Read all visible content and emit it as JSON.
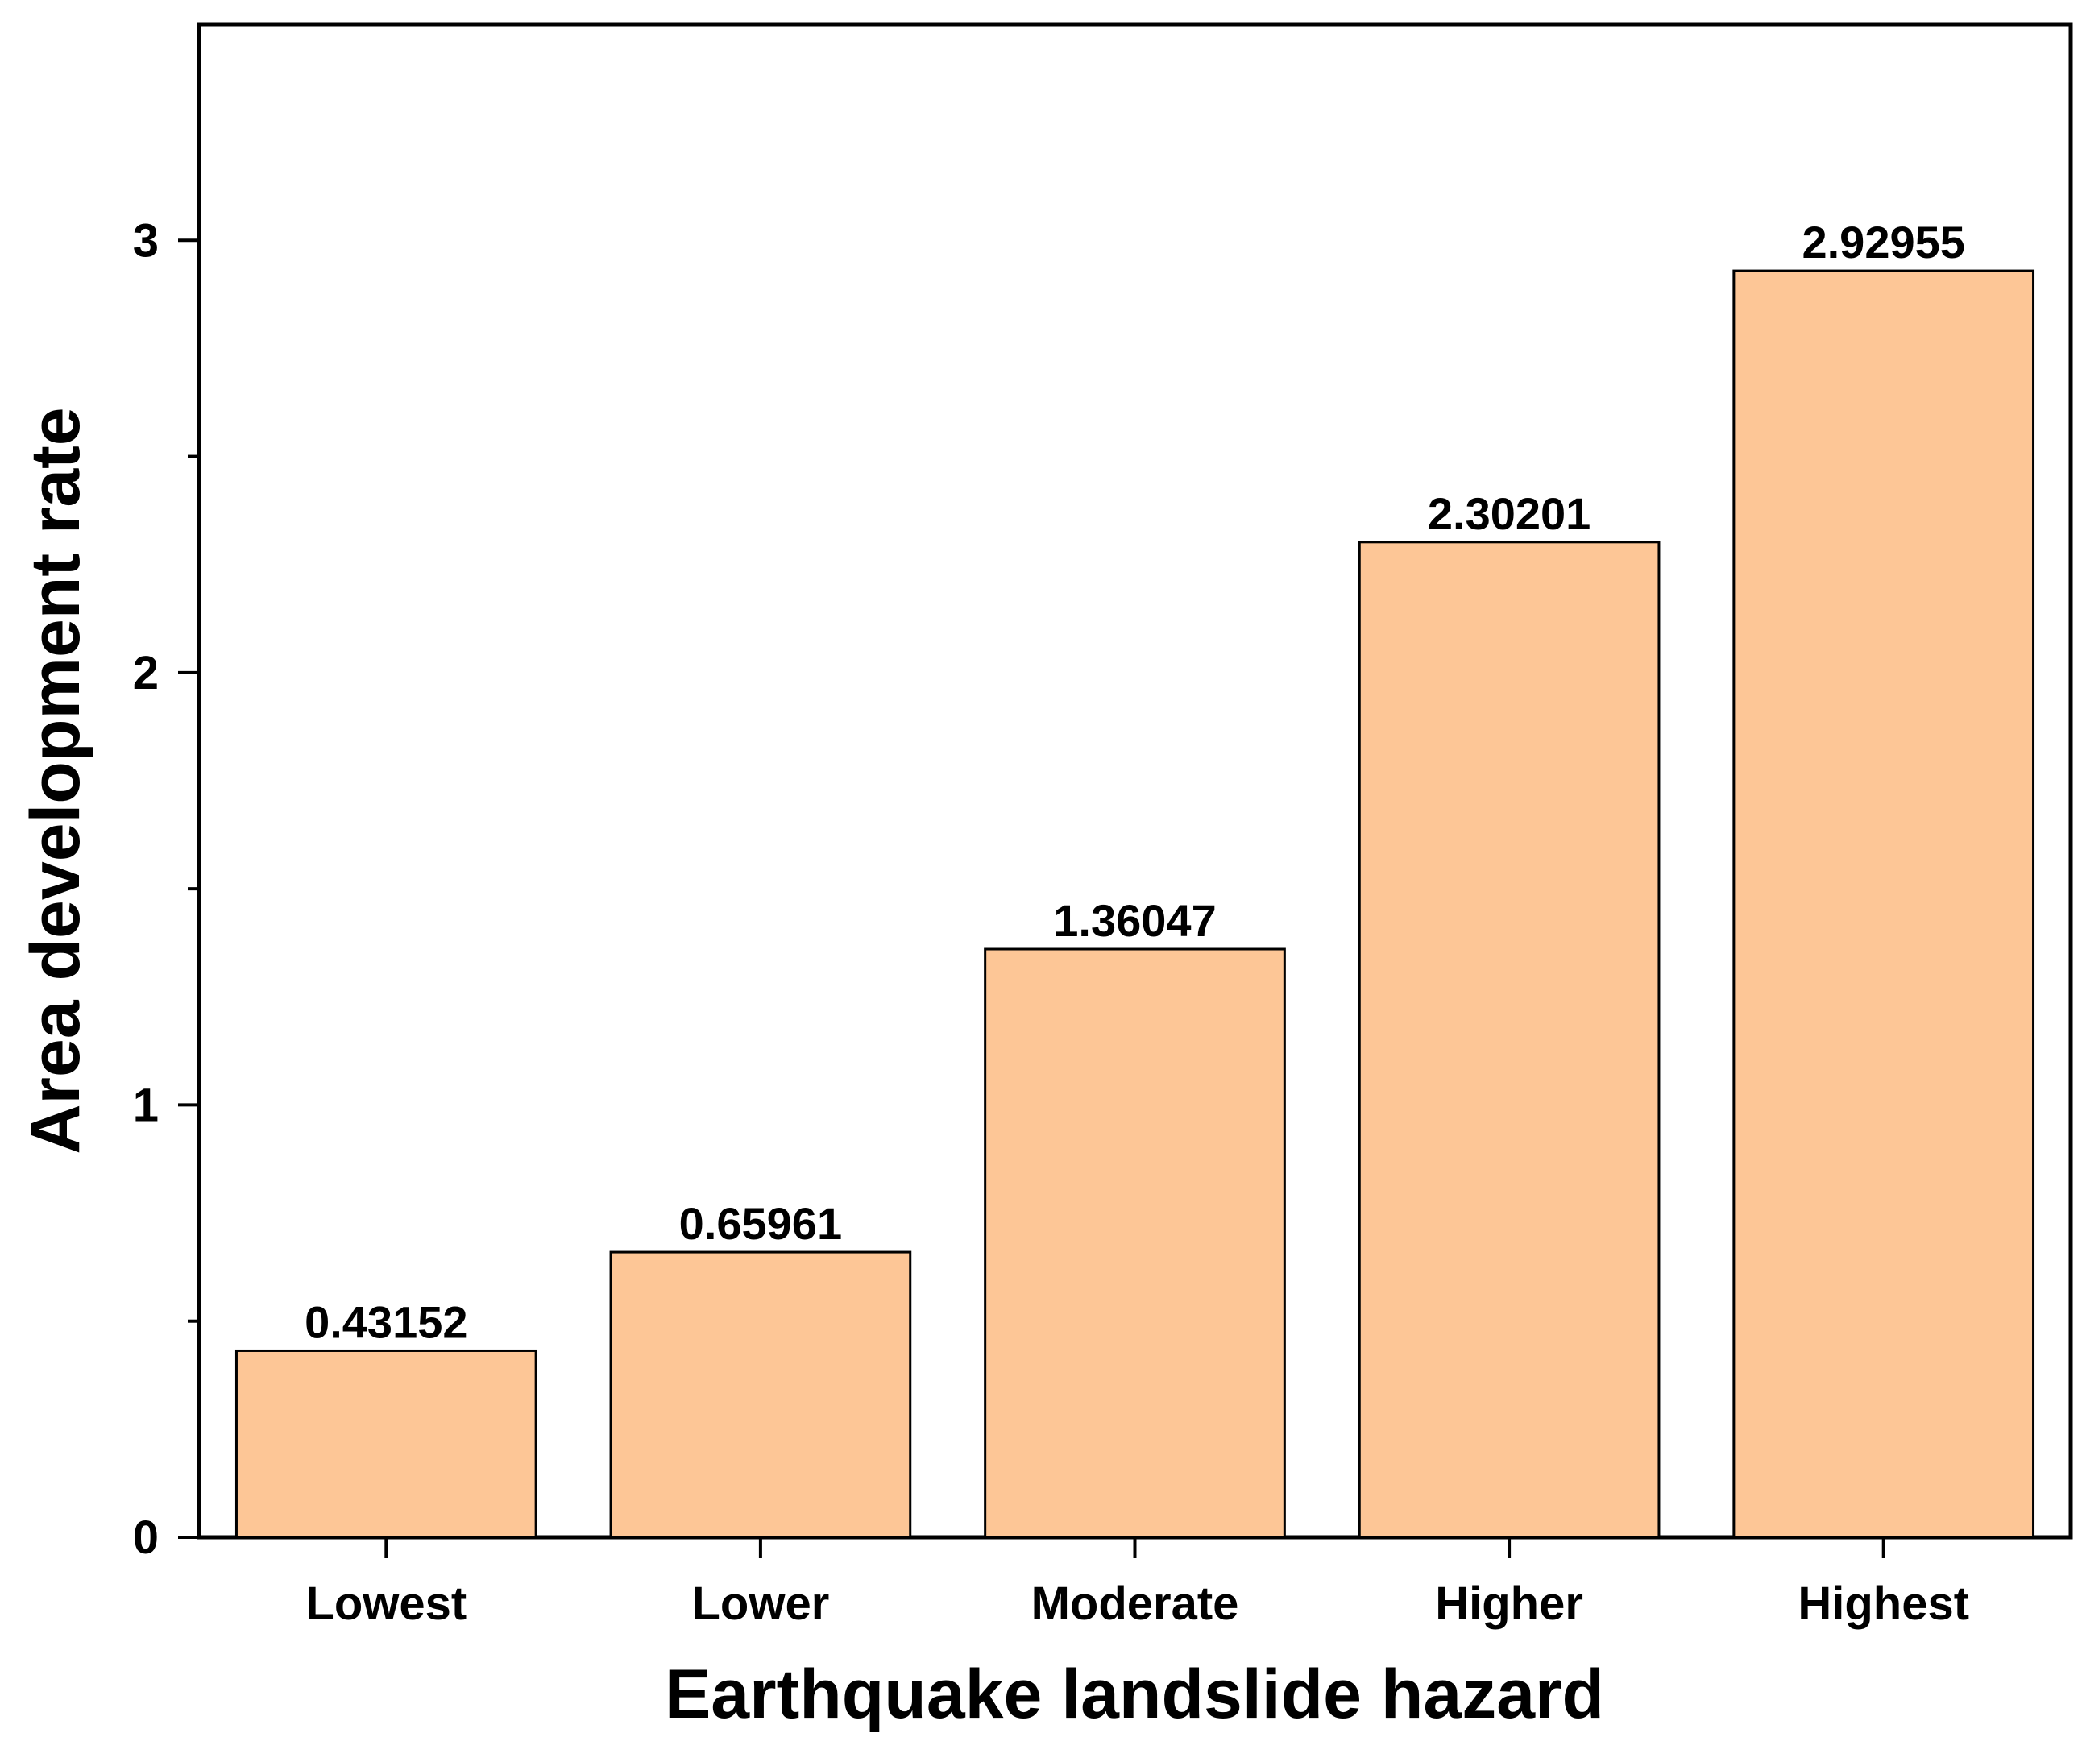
{
  "chart_data": {
    "type": "bar",
    "title": "",
    "xlabel": "Earthquake landslide hazard",
    "ylabel": "Area development rate",
    "categories": [
      "Lowest",
      "Lower",
      "Moderate",
      "Higher",
      "Highest"
    ],
    "values": [
      0.43152,
      0.65961,
      1.36047,
      2.30201,
      2.92955
    ],
    "value_labels": [
      "0.43152",
      "0.65961",
      "1.36047",
      "2.30201",
      "2.92955"
    ],
    "ylim": [
      0,
      3.5
    ],
    "y_major_ticks": [
      0,
      1,
      2,
      3
    ],
    "y_minor_ticks": [
      0.5,
      1.5,
      2.5
    ],
    "y_tick_labels": [
      "0",
      "1",
      "2",
      "3"
    ],
    "grid": false,
    "legend": "none",
    "colors": {
      "bar_fill": "#FDC696",
      "bar_stroke": "#000000",
      "axis": "#000000",
      "background": "#FFFFFF"
    }
  }
}
